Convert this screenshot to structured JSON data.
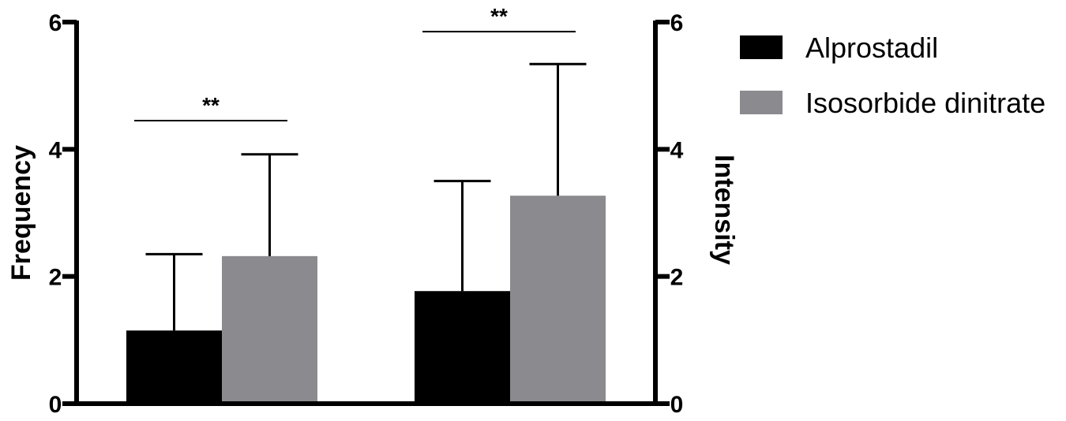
{
  "chart_data": {
    "type": "bar",
    "categories": [
      "",
      ""
    ],
    "series": [
      {
        "name": "Alprostadil",
        "color": "#000000",
        "values": [
          1.15,
          1.77
        ],
        "error": [
          1.2,
          1.73
        ]
      },
      {
        "name": "Isosorbide dinitrate",
        "color": "#8b8b8f",
        "values": [
          2.32,
          3.27
        ],
        "error": [
          1.6,
          2.07
        ]
      }
    ],
    "ylabel_left": "Frequency",
    "ylabel_right": "Intensity",
    "ylim": [
      0,
      6
    ],
    "yticks": [
      0,
      2,
      4,
      6
    ],
    "legend_position": "top-right",
    "grid": false,
    "significance": [
      {
        "label": "**",
        "y": 4.45,
        "category_index": 0
      },
      {
        "label": "**",
        "y": 5.85,
        "category_index": 1
      }
    ]
  }
}
